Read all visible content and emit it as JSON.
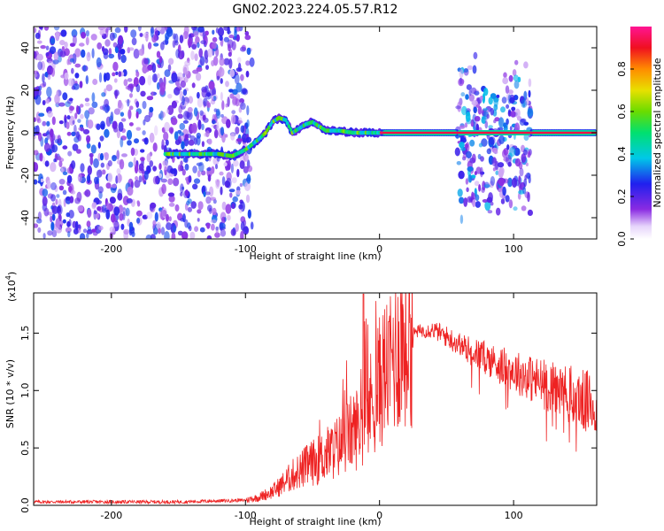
{
  "title": "GN02.2023.224.05.57.R12",
  "chart_data": [
    {
      "type": "heatmap",
      "xlabel": "Height of straight line (km)",
      "ylabel": "Frequency (Hz)",
      "xlim": [
        -258,
        162
      ],
      "ylim": [
        -50,
        50
      ],
      "x_ticks": [
        "-200",
        "-100",
        "0",
        "100"
      ],
      "y_ticks": [
        "40",
        "20",
        "0",
        "-20",
        "-40"
      ],
      "colorbar": {
        "label": "Normalized spectral amplitude",
        "range": [
          0,
          1
        ],
        "ticks": [
          "0.0",
          "0.2",
          "0.4",
          "0.6",
          "0.8"
        ]
      },
      "regions": [
        {
          "x": [
            -258,
            -95
          ],
          "f": [
            -50,
            50
          ],
          "level": 0.25,
          "note": "broadband noise"
        },
        {
          "x": [
            58,
            113
          ],
          "f": [
            -45,
            37
          ],
          "level": 0.3,
          "note": "broadband noise"
        }
      ],
      "ridge": [
        [
          -160,
          -10
        ],
        [
          -150,
          -10
        ],
        [
          -140,
          -10
        ],
        [
          -130,
          -10
        ],
        [
          -120,
          -10
        ],
        [
          -110,
          -11
        ],
        [
          -100,
          -8
        ],
        [
          -90,
          -3
        ],
        [
          -85,
          0
        ],
        [
          -80,
          5
        ],
        [
          -75,
          7
        ],
        [
          -70,
          6
        ],
        [
          -65,
          0
        ],
        [
          -60,
          2
        ],
        [
          -55,
          4
        ],
        [
          -50,
          5
        ],
        [
          -45,
          3
        ],
        [
          -40,
          1
        ],
        [
          -30,
          1
        ],
        [
          -20,
          0
        ],
        [
          -10,
          0
        ],
        [
          0,
          0
        ],
        [
          10,
          0
        ],
        [
          50,
          0
        ],
        [
          60,
          0
        ],
        [
          80,
          0
        ],
        [
          100,
          0
        ],
        [
          120,
          0
        ],
        [
          150,
          0
        ],
        [
          162,
          0
        ]
      ]
    },
    {
      "type": "line",
      "xlabel": "Height of straight line (km)",
      "ylabel": "SNR (10 * v/v)",
      "y_scale_label": "(x10",
      "y_scale_exp": "4",
      "y_scale_close": ")",
      "xlim": [
        -258,
        162
      ],
      "ylim": [
        0,
        18500
      ],
      "x_ticks": [
        "-200",
        "-100",
        "0",
        "100"
      ],
      "y_ticks": [
        "0.0",
        "0.5",
        "1.0",
        "1.5"
      ],
      "series": [
        {
          "color": "#ee2222",
          "x": [
            -258,
            -200,
            -150,
            -100,
            -90,
            -80,
            -75,
            -70,
            -65,
            -60,
            -55,
            -50,
            -45,
            -40,
            -35,
            -30,
            -25,
            -20,
            -15,
            -10,
            -5,
            0,
            5,
            10,
            15,
            20,
            30,
            40,
            50,
            60,
            70,
            80,
            90,
            100,
            110,
            120,
            130,
            140,
            150,
            162
          ],
          "y": [
            300,
            300,
            300,
            450,
            700,
            1200,
            1600,
            2100,
            2600,
            3000,
            3400,
            3700,
            4000,
            4400,
            4800,
            5200,
            5900,
            6400,
            7000,
            7800,
            9300,
            10700,
            12000,
            13000,
            14000,
            14800,
            15200,
            15300,
            14700,
            14000,
            13300,
            12800,
            12200,
            11700,
            11200,
            10700,
            10200,
            9700,
            9200,
            8600
          ]
        }
      ]
    }
  ]
}
